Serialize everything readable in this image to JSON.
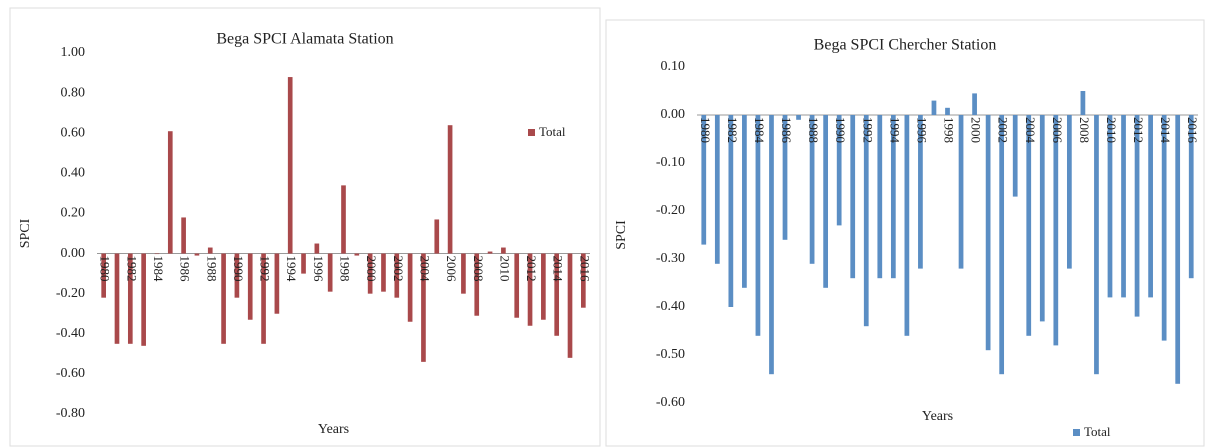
{
  "chart_data": [
    {
      "type": "bar",
      "title": "Bega SPCI Alamata Station",
      "x_label": "Years",
      "y_label": "SPCI",
      "categories": [
        "1980",
        null,
        "1982",
        null,
        "1984",
        null,
        "1986",
        null,
        "1988",
        null,
        "1990",
        null,
        "1992",
        null,
        "1994",
        null,
        "1996",
        null,
        "1998",
        null,
        "2000",
        null,
        "2002",
        null,
        "2004",
        null,
        "2006",
        null,
        "2008",
        null,
        "2010",
        null,
        "2012",
        null,
        "2014",
        null,
        "2016"
      ],
      "series": [
        {
          "name": "Total",
          "color": "#a9494b",
          "values": [
            -0.22,
            -0.45,
            -0.45,
            -0.46,
            0.0,
            0.61,
            0.18,
            -0.01,
            0.03,
            -0.45,
            -0.22,
            -0.33,
            -0.45,
            -0.3,
            0.88,
            -0.1,
            0.05,
            -0.19,
            0.34,
            -0.01,
            -0.2,
            -0.19,
            -0.22,
            -0.34,
            -0.54,
            0.17,
            0.64,
            -0.2,
            -0.31,
            0.01,
            0.03,
            -0.32,
            -0.36,
            -0.33,
            -0.41,
            -0.52,
            -0.27
          ]
        }
      ],
      "ylim": [
        -0.8,
        1.0
      ],
      "yticks": [
        {
          "value": 1.0,
          "label": "1.00"
        },
        {
          "value": 0.8,
          "label": "0.80"
        },
        {
          "value": 0.6,
          "label": "0.60"
        },
        {
          "value": 0.4,
          "label": "0.40"
        },
        {
          "value": 0.2,
          "label": "0.20"
        },
        {
          "value": 0.0,
          "label": "0.00"
        },
        {
          "value": -0.2,
          "label": "-0.20"
        },
        {
          "value": -0.4,
          "label": "-0.40"
        },
        {
          "value": -0.6,
          "label": "-0.60"
        },
        {
          "value": -0.8,
          "label": "-0.80"
        }
      ],
      "legend": "right"
    },
    {
      "type": "bar",
      "title": "Bega SPCI Chercher Station",
      "x_label": "Years",
      "y_label": "SPCI",
      "categories": [
        "1980",
        null,
        "1982",
        null,
        "1984",
        null,
        "1986",
        null,
        "1988",
        null,
        "1990",
        null,
        "1992",
        null,
        "1994",
        null,
        "1996",
        null,
        "1998",
        null,
        "2000",
        null,
        "2002",
        null,
        "2004",
        null,
        "2006",
        null,
        "2008",
        null,
        "2010",
        null,
        "2012",
        null,
        "2014",
        null,
        "2016"
      ],
      "series": [
        {
          "name": "Total",
          "color": "#5b8ec4",
          "values": [
            -0.27,
            -0.31,
            -0.4,
            -0.36,
            -0.46,
            -0.54,
            -0.26,
            -0.01,
            -0.31,
            -0.36,
            -0.23,
            -0.34,
            -0.44,
            -0.34,
            -0.34,
            -0.46,
            -0.32,
            0.03,
            0.015,
            -0.32,
            0.045,
            -0.49,
            -0.54,
            -0.17,
            -0.46,
            -0.43,
            -0.48,
            -0.32,
            0.05,
            -0.54,
            -0.38,
            -0.38,
            -0.42,
            -0.38,
            -0.47,
            -0.56,
            -0.34
          ]
        }
      ],
      "ylim": [
        -0.6,
        0.1
      ],
      "yticks": [
        {
          "value": 0.1,
          "label": "0.10"
        },
        {
          "value": 0.0,
          "label": "0.00"
        },
        {
          "value": -0.1,
          "label": "-0.10"
        },
        {
          "value": -0.2,
          "label": "-0.20"
        },
        {
          "value": -0.3,
          "label": "-0.30"
        },
        {
          "value": -0.4,
          "label": "-0.40"
        },
        {
          "value": -0.5,
          "label": "-0.50"
        },
        {
          "value": -0.6,
          "label": "-0.60"
        }
      ],
      "legend": "bottom"
    }
  ]
}
